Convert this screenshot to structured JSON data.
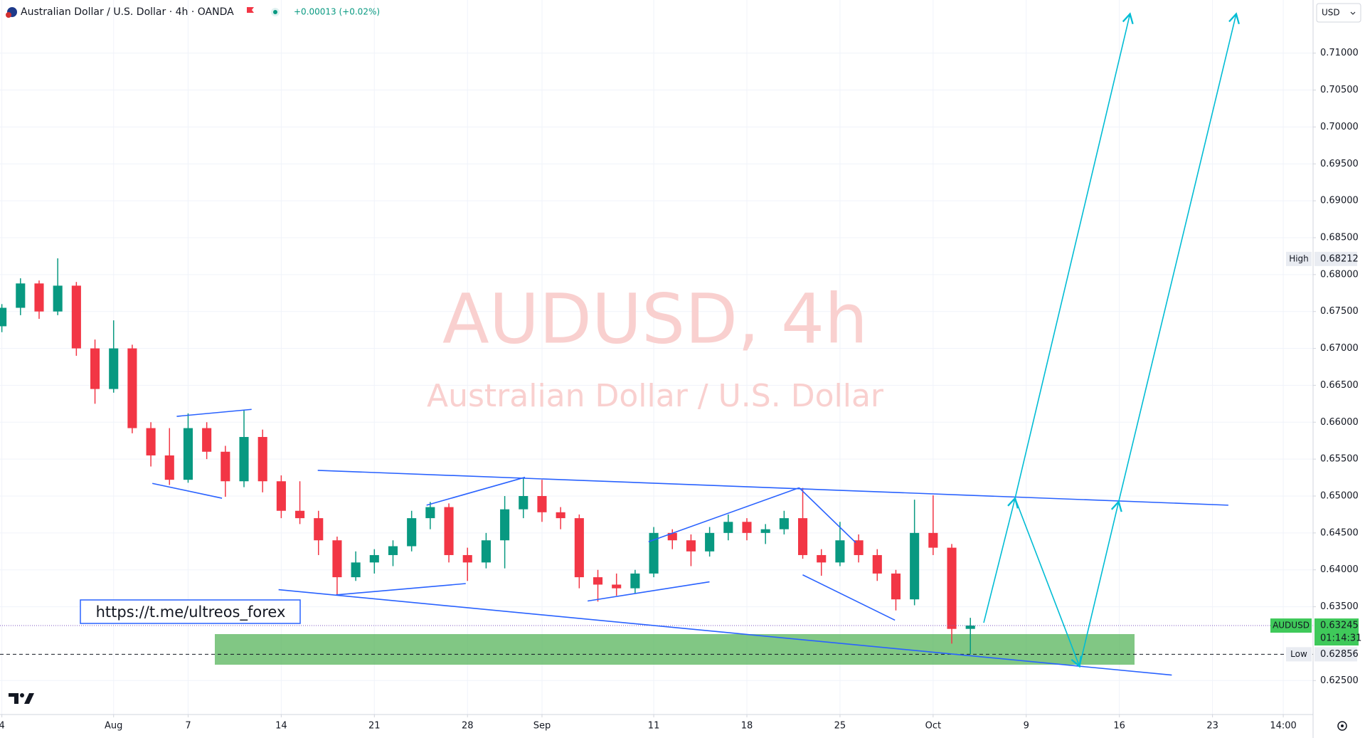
{
  "header": {
    "title": "Australian Dollar / U.S. Dollar · 4h · OANDA",
    "change": "+0.00013 (+0.02%)"
  },
  "watermark": {
    "symbol": "AUDUSD, 4h",
    "description": "Australian Dollar / U.S. Dollar"
  },
  "link": "https://t.me/ultreos_forex",
  "chart_data": {
    "type": "candlestick",
    "currency": "USD",
    "up_color": "#089981",
    "down_color": "#f23645",
    "x": [
      0,
      1,
      2,
      3,
      4,
      5,
      6,
      7,
      8,
      9,
      10,
      11,
      12,
      13,
      14,
      15,
      16,
      17,
      18,
      19,
      20,
      21,
      22,
      23,
      24,
      25,
      26,
      27,
      28,
      29,
      30,
      31,
      32,
      33,
      34,
      35,
      36,
      37,
      38,
      39,
      40,
      41,
      42,
      43,
      44,
      45,
      46,
      47,
      48,
      49,
      50,
      51,
      52
    ],
    "open": [
      0.673,
      0.6755,
      0.6788,
      0.675,
      0.6785,
      0.67,
      0.6645,
      0.67,
      0.6592,
      0.6555,
      0.6522,
      0.6592,
      0.656,
      0.652,
      0.658,
      0.652,
      0.648,
      0.647,
      0.644,
      0.639,
      0.641,
      0.642,
      0.6432,
      0.647,
      0.6485,
      0.642,
      0.641,
      0.644,
      0.6482,
      0.65,
      0.6478,
      0.647,
      0.639,
      0.638,
      0.6375,
      0.6395,
      0.645,
      0.644,
      0.6425,
      0.645,
      0.6465,
      0.645,
      0.6455,
      0.647,
      0.642,
      0.641,
      0.644,
      0.642,
      0.6395,
      0.636,
      0.645,
      0.643,
      0.632
    ],
    "high": [
      0.676,
      0.6795,
      0.6792,
      0.6822,
      0.679,
      0.6712,
      0.6738,
      0.6705,
      0.66,
      0.6592,
      0.6612,
      0.66,
      0.6568,
      0.6617,
      0.659,
      0.6528,
      0.652,
      0.648,
      0.6445,
      0.6425,
      0.6428,
      0.644,
      0.648,
      0.6492,
      0.649,
      0.643,
      0.645,
      0.65,
      0.6525,
      0.6522,
      0.6485,
      0.6475,
      0.64,
      0.6395,
      0.64,
      0.6458,
      0.6455,
      0.6448,
      0.6458,
      0.6475,
      0.647,
      0.6462,
      0.648,
      0.6511,
      0.6428,
      0.6465,
      0.6448,
      0.6428,
      0.64,
      0.6495,
      0.6501,
      0.6435,
      0.6335
    ],
    "low": [
      0.6722,
      0.6745,
      0.674,
      0.6745,
      0.669,
      0.6625,
      0.664,
      0.6585,
      0.654,
      0.6515,
      0.6518,
      0.655,
      0.6499,
      0.6512,
      0.6505,
      0.647,
      0.6462,
      0.642,
      0.6366,
      0.6385,
      0.6395,
      0.6405,
      0.6425,
      0.6455,
      0.641,
      0.6385,
      0.6402,
      0.6402,
      0.647,
      0.6465,
      0.6455,
      0.6375,
      0.6357,
      0.6365,
      0.6368,
      0.639,
      0.6428,
      0.6405,
      0.6418,
      0.644,
      0.644,
      0.6435,
      0.6448,
      0.6415,
      0.6392,
      0.6405,
      0.641,
      0.6385,
      0.6345,
      0.6352,
      0.642,
      0.63,
      0.62856
    ],
    "close": [
      0.6755,
      0.6788,
      0.675,
      0.6785,
      0.67,
      0.6645,
      0.67,
      0.6592,
      0.6555,
      0.6522,
      0.6592,
      0.656,
      0.652,
      0.658,
      0.652,
      0.648,
      0.647,
      0.644,
      0.639,
      0.641,
      0.642,
      0.6432,
      0.647,
      0.6485,
      0.642,
      0.641,
      0.644,
      0.6482,
      0.65,
      0.6478,
      0.647,
      0.639,
      0.638,
      0.6375,
      0.6395,
      0.645,
      0.644,
      0.6425,
      0.645,
      0.6465,
      0.645,
      0.6455,
      0.647,
      0.642,
      0.641,
      0.644,
      0.642,
      0.6395,
      0.636,
      0.645,
      0.643,
      0.632,
      0.63245
    ],
    "xlim": [
      -0.1,
      70.4
    ],
    "xticks": [
      {
        "value": 0,
        "label": "4"
      },
      {
        "value": 6,
        "label": "Aug"
      },
      {
        "value": 10,
        "label": "7"
      },
      {
        "value": 15,
        "label": "14"
      },
      {
        "value": 20,
        "label": "21"
      },
      {
        "value": 25,
        "label": "28"
      },
      {
        "value": 29,
        "label": "Sep"
      },
      {
        "value": 35,
        "label": "11"
      },
      {
        "value": 40,
        "label": "18"
      },
      {
        "value": 45,
        "label": "25"
      },
      {
        "value": 50,
        "label": "Oct"
      },
      {
        "value": 55,
        "label": "9"
      },
      {
        "value": 60,
        "label": "16"
      },
      {
        "value": 65,
        "label": "23"
      },
      {
        "value": 68.8,
        "label": "14:00"
      }
    ],
    "ylim": [
      0.6204,
      0.7172
    ],
    "yticks": [
      {
        "value": 0.625,
        "label": "0.62500"
      },
      {
        "value": 0.635,
        "label": "0.63500"
      },
      {
        "value": 0.64,
        "label": "0.64000"
      },
      {
        "value": 0.645,
        "label": "0.64500"
      },
      {
        "value": 0.65,
        "label": "0.65000"
      },
      {
        "value": 0.655,
        "label": "0.65500"
      },
      {
        "value": 0.66,
        "label": "0.66000"
      },
      {
        "value": 0.665,
        "label": "0.66500"
      },
      {
        "value": 0.67,
        "label": "0.67000"
      },
      {
        "value": 0.675,
        "label": "0.67500"
      },
      {
        "value": 0.68,
        "label": "0.68000"
      },
      {
        "value": 0.685,
        "label": "0.68500"
      },
      {
        "value": 0.69,
        "label": "0.69000"
      },
      {
        "value": 0.695,
        "label": "0.69500"
      },
      {
        "value": 0.7,
        "label": "0.70000"
      },
      {
        "value": 0.705,
        "label": "0.70500"
      },
      {
        "value": 0.71,
        "label": "0.71000"
      }
    ],
    "grid": true,
    "high_marker": {
      "label": "High",
      "value": 0.68212
    },
    "low_marker": {
      "label": "Low",
      "value": 0.62856
    },
    "last_price": {
      "symbol": "AUDUSD",
      "value": 0.63245,
      "countdown": "01:14:31",
      "color": "#3fc95a"
    }
  }
}
